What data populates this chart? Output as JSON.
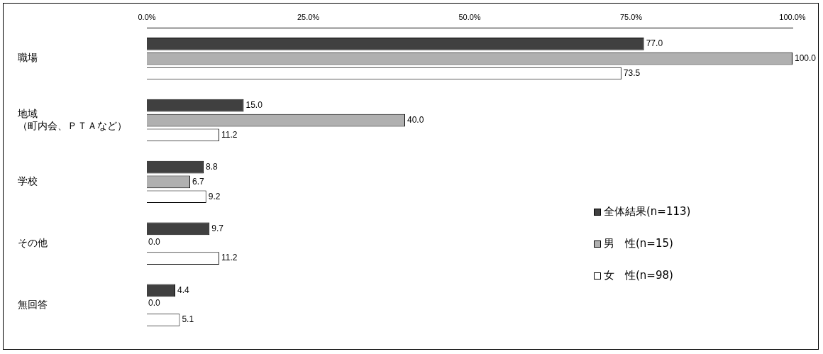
{
  "chart_data": {
    "type": "bar",
    "orientation": "horizontal",
    "categories": [
      "職場",
      "地域（町内会、ＰＴＡなど）",
      "学校",
      "その他",
      "無回答"
    ],
    "series": [
      {
        "name": "全体結果(n=113)",
        "color": "#404040",
        "values": [
          77.0,
          15.0,
          8.8,
          9.7,
          4.4
        ],
        "value_labels": [
          "77.0",
          "15.0",
          "8.8",
          "9.7",
          "4.4"
        ]
      },
      {
        "name": "男　性(n=15)",
        "color": "#b0b0b0",
        "values": [
          100.0,
          40.0,
          6.7,
          0.0,
          0.0
        ],
        "value_labels": [
          "100.0",
          "40.0",
          "6.7",
          "0.0",
          "0.0"
        ]
      },
      {
        "name": "女　性(n=98)",
        "color": "#ffffff",
        "values": [
          73.5,
          11.2,
          9.2,
          11.2,
          5.1
        ],
        "value_labels": [
          "73.5",
          "11.2",
          "9.2",
          "11.2",
          "5.1"
        ]
      }
    ],
    "xlim": [
      0,
      100
    ],
    "xticks": [
      {
        "value": 0,
        "label": "0.0%"
      },
      {
        "value": 25,
        "label": "25.0%"
      },
      {
        "value": 50,
        "label": "50.0%"
      },
      {
        "value": 75,
        "label": "75.0%"
      },
      {
        "value": 100,
        "label": "100.0%"
      }
    ],
    "grid": false,
    "legend": "bottom right"
  }
}
